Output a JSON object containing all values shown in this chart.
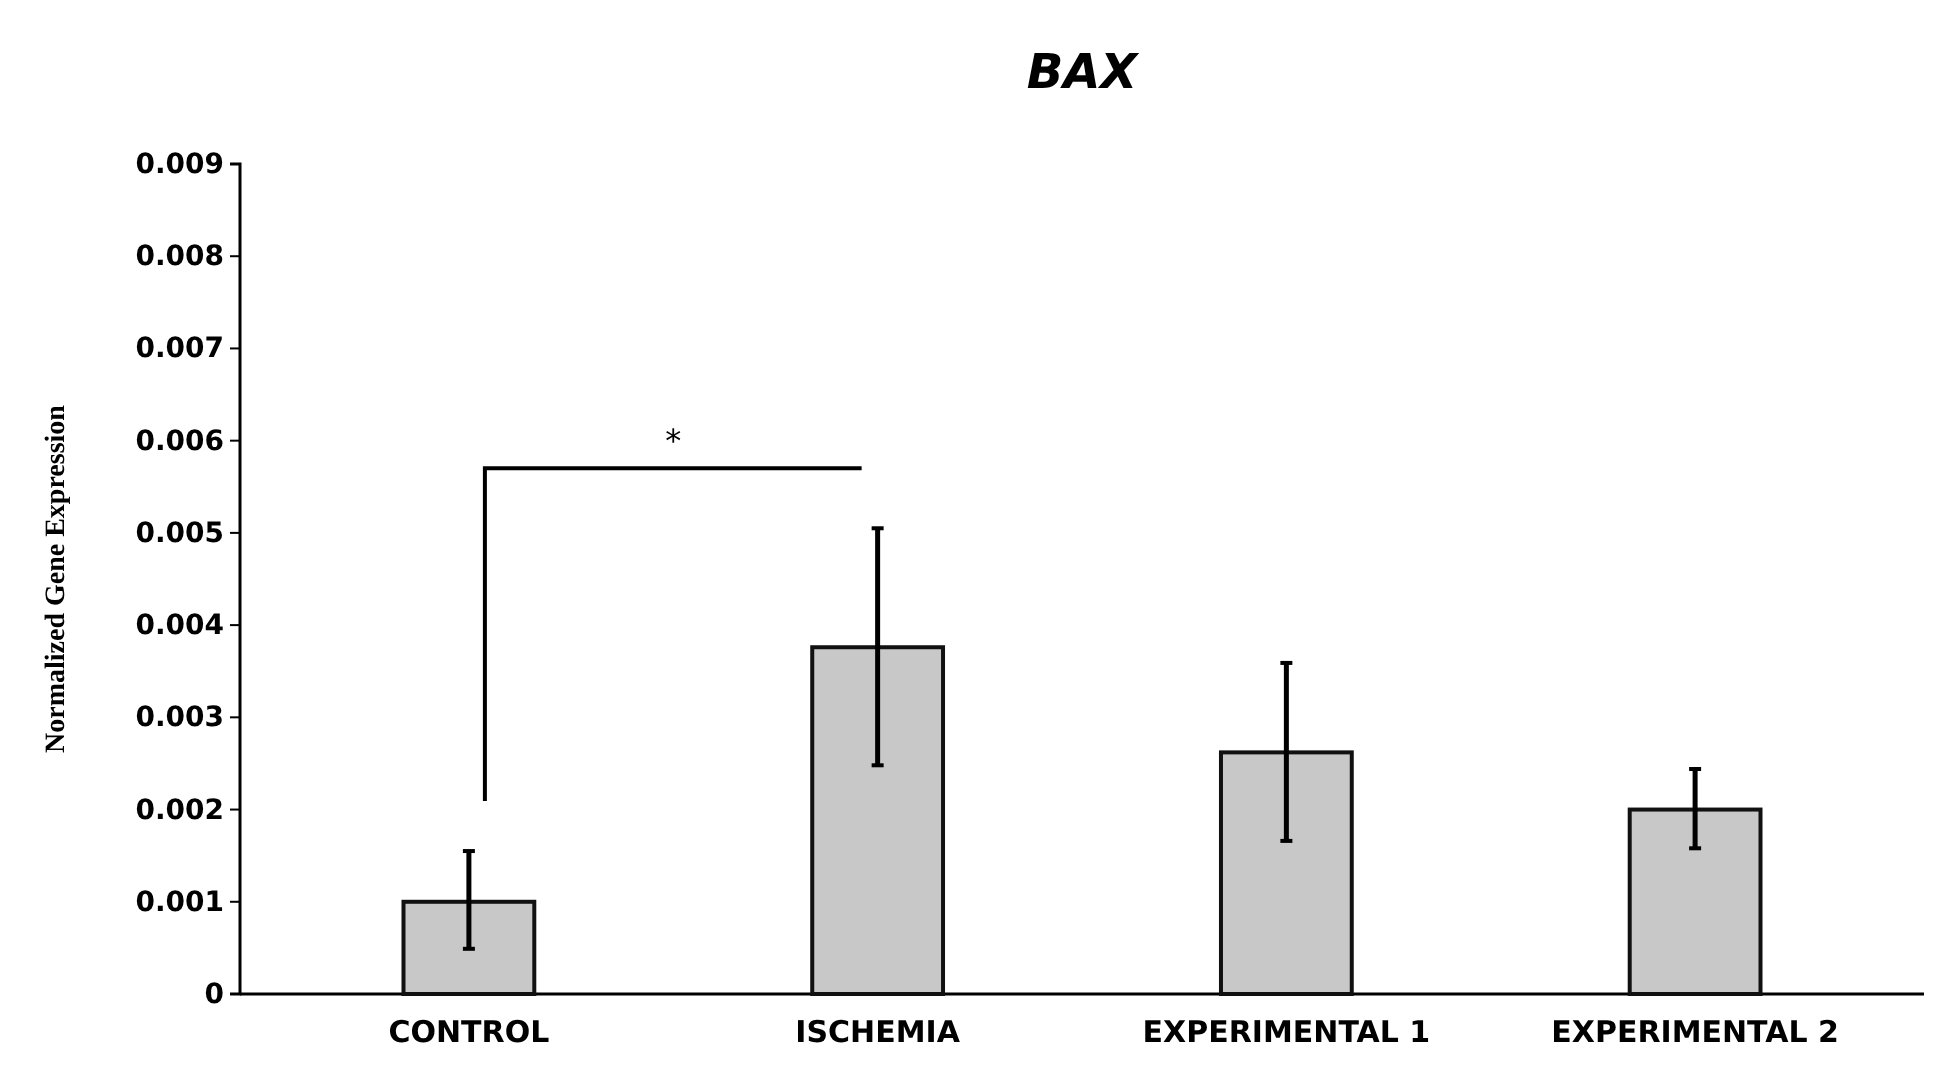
{
  "chart_data": {
    "type": "bar",
    "title": "BAX",
    "ylabel": "Normalized Gene Expression",
    "categories": [
      "CONTROL",
      "ISCHEMIA",
      "EXPERIMENTAL 1",
      "EXPERIMENTAL 2"
    ],
    "values": [
      0.001,
      0.00376,
      0.00262,
      0.002
    ],
    "errors": [
      [
        0.00049,
        0.00155
      ],
      [
        0.00248,
        0.00505
      ],
      [
        0.00166,
        0.00359
      ],
      [
        0.00158,
        0.00244
      ]
    ],
    "color": "#c8c8c8",
    "ylim": [
      0,
      0.009
    ],
    "yticks": [
      {
        "value": 0,
        "label": "0"
      },
      0.001,
      0.002,
      0.003,
      0.004,
      0.005,
      0.006,
      0.007,
      0.008,
      0.009
    ],
    "annotations": [
      "*"
    ]
  }
}
